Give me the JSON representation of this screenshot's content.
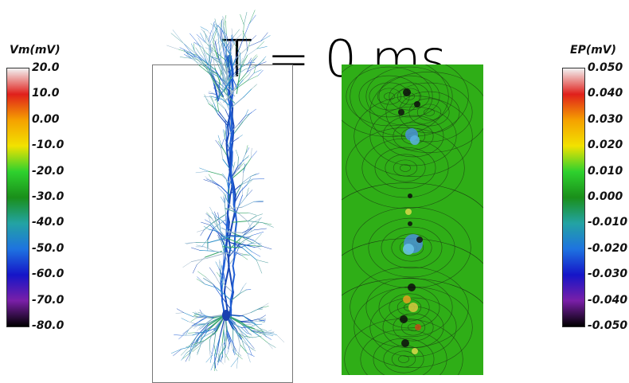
{
  "time_label": "T = 0 ms",
  "vm_colorbar": {
    "title": "Vm(mV)",
    "ticks": [
      "20.0",
      "10.0",
      "0.00",
      "-10.0",
      "-20.0",
      "-30.0",
      "-40.0",
      "-50.0",
      "-60.0",
      "-70.0",
      "-80.0"
    ],
    "colors": [
      "#f2f2f2",
      "#e0201b",
      "#f5a000",
      "#f2e200",
      "#2ed12e",
      "#1a8f1a",
      "#23a3a3",
      "#1e73e0",
      "#1515c8",
      "#7a1fa8",
      "#000000"
    ]
  },
  "ep_colorbar": {
    "title": "EP(mV)",
    "ticks": [
      "0.050",
      "0.040",
      "0.030",
      "0.020",
      "0.010",
      "0.000",
      "-0.010",
      "-0.020",
      "-0.030",
      "-0.040",
      "-0.050"
    ],
    "colors": [
      "#f2f2f2",
      "#e0201b",
      "#f5a000",
      "#f2e200",
      "#2ed12e",
      "#1a8f1a",
      "#23a3a3",
      "#1e73e0",
      "#1515c8",
      "#7a1fa8",
      "#000000"
    ]
  },
  "field_background": "#2fae17"
}
